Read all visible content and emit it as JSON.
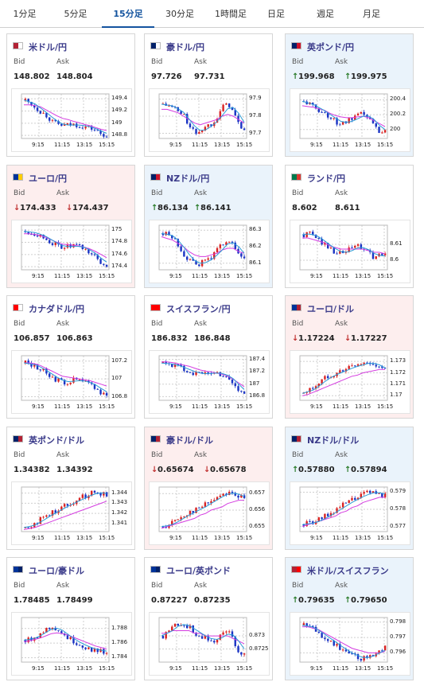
{
  "tabs": [
    {
      "label": "1分足",
      "active": false
    },
    {
      "label": "5分足",
      "active": false
    },
    {
      "label": "15分足",
      "active": true
    },
    {
      "label": "30分足",
      "active": false
    },
    {
      "label": "1時間足",
      "active": false
    },
    {
      "label": "日足",
      "active": false
    },
    {
      "label": "週足",
      "active": false
    },
    {
      "label": "月足",
      "active": false
    }
  ],
  "labels": {
    "bid": "Bid",
    "ask": "Ask"
  },
  "colors": {
    "up_bg": "#eaf3fb",
    "down_bg": "#fdeeee",
    "up_arrow": "#2a7b2a",
    "down_arrow": "#c03030",
    "candle_up": "#d92323",
    "candle_down": "#1b34c4",
    "ma_short": "#2b9bd6",
    "ma_long": "#d43ce0",
    "tab_active": "#14549f"
  },
  "cards": [
    {
      "pair": "米ドル/円",
      "flag": [
        "#b22234",
        "#ffffff"
      ],
      "state": "neutral",
      "bid_arrow": "",
      "bid": "148.802",
      "ask_arrow": "",
      "ask": "148.804",
      "chart": {
        "yticks": [
          "149.4",
          "149.2",
          "149",
          "148.8"
        ],
        "xticks": [
          "9:15",
          "11:15",
          "13:15",
          "15:15"
        ],
        "ymin": 148.75,
        "ymax": 149.48,
        "trend": [
          149.38,
          149.32,
          149.25,
          149.18,
          149.12,
          149.02,
          148.98,
          148.96,
          148.97,
          148.98,
          148.96,
          148.94,
          148.92,
          148.88,
          148.82,
          148.8
        ],
        "ma": [
          149.3,
          149.3,
          149.29,
          149.27,
          149.22,
          149.17,
          149.12,
          149.08,
          149.06,
          149.03,
          149.01,
          148.98,
          148.96,
          148.93,
          148.9,
          148.88
        ]
      }
    },
    {
      "pair": "豪ドル/円",
      "flag": [
        "#012169",
        "#ffffff"
      ],
      "state": "neutral",
      "bid_arrow": "",
      "bid": "97.726",
      "ask_arrow": "",
      "ask": "97.731",
      "chart": {
        "yticks": [
          "97.9",
          "97.8",
          "97.7"
        ],
        "xticks": [
          "9:15",
          "11:15",
          "13:15",
          "15:15"
        ],
        "ymin": 97.67,
        "ymax": 97.93,
        "trend": [
          97.87,
          97.86,
          97.85,
          97.82,
          97.8,
          97.73,
          97.7,
          97.72,
          97.74,
          97.76,
          97.8,
          97.85,
          97.88,
          97.82,
          97.75,
          97.72
        ],
        "ma": [
          97.84,
          97.84,
          97.83,
          97.82,
          97.8,
          97.78,
          97.76,
          97.75,
          97.76,
          97.77,
          97.78,
          97.8,
          97.81,
          97.8,
          97.78,
          97.76
        ]
      }
    },
    {
      "pair": "英ポンド/円",
      "flag": [
        "#012169",
        "#cf142b"
      ],
      "state": "up",
      "bid_arrow": "↑",
      "bid": "199.968",
      "ask_arrow": "↑",
      "ask": "199.975",
      "chart": {
        "yticks": [
          "200.4",
          "200.2",
          "200"
        ],
        "xticks": [
          "9:15",
          "11:15",
          "13:15",
          "15:15"
        ],
        "ymin": 199.88,
        "ymax": 200.48,
        "trend": [
          200.38,
          200.34,
          200.3,
          200.25,
          200.22,
          200.15,
          200.1,
          200.08,
          200.11,
          200.14,
          200.18,
          200.22,
          200.14,
          200.05,
          199.98,
          199.97
        ],
        "ma": [
          200.32,
          200.31,
          200.3,
          200.28,
          200.26,
          200.22,
          200.19,
          200.17,
          200.16,
          200.16,
          200.17,
          200.18,
          200.16,
          200.12,
          200.08,
          200.04
        ]
      }
    },
    {
      "pair": "ユーロ/円",
      "flag": [
        "#003399",
        "#ffcc00"
      ],
      "state": "down",
      "bid_arrow": "↓",
      "bid": "174.433",
      "ask_arrow": "↓",
      "ask": "174.437",
      "chart": {
        "yticks": [
          "175",
          "174.8",
          "174.6",
          "174.4"
        ],
        "xticks": [
          "9:15",
          "11:15",
          "13:15",
          "15:15"
        ],
        "ymin": 174.35,
        "ymax": 175.08,
        "trend": [
          174.98,
          174.96,
          174.94,
          174.9,
          174.85,
          174.78,
          174.74,
          174.72,
          174.73,
          174.75,
          174.72,
          174.68,
          174.62,
          174.55,
          174.45,
          174.43
        ],
        "ma": [
          174.94,
          174.94,
          174.93,
          174.91,
          174.88,
          174.84,
          174.8,
          174.77,
          174.76,
          174.75,
          174.74,
          174.72,
          174.69,
          174.65,
          174.6,
          174.55
        ]
      }
    },
    {
      "pair": "NZドル/円",
      "flag": [
        "#012169",
        "#cc142b"
      ],
      "state": "up",
      "bid_arrow": "↑",
      "bid": "86.134",
      "ask_arrow": "↑",
      "ask": "86.141",
      "chart": {
        "yticks": [
          "86.3",
          "86.2",
          "86.1"
        ],
        "xticks": [
          "9:15",
          "11:15",
          "13:15",
          "15:15"
        ],
        "ymin": 86.06,
        "ymax": 86.33,
        "trend": [
          86.28,
          86.27,
          86.25,
          86.2,
          86.15,
          86.11,
          86.09,
          86.1,
          86.12,
          86.14,
          86.18,
          86.22,
          86.25,
          86.2,
          86.15,
          86.13
        ],
        "ma": [
          86.26,
          86.25,
          86.24,
          86.22,
          86.2,
          86.17,
          86.15,
          86.14,
          86.14,
          86.15,
          86.16,
          86.18,
          86.19,
          86.19,
          86.17,
          86.16
        ]
      }
    },
    {
      "pair": "ランド/円",
      "flag": [
        "#007a4d",
        "#de3831"
      ],
      "state": "neutral",
      "bid_arrow": "",
      "bid": "8.602",
      "ask_arrow": "",
      "ask": "8.611",
      "chart": {
        "yticks": [
          "8.61",
          "8.6"
        ],
        "xticks": [
          "9:15",
          "11:15",
          "13:15",
          "15:15"
        ],
        "ymin": 8.594,
        "ymax": 8.622,
        "trend": [
          8.616,
          8.617,
          8.615,
          8.612,
          8.61,
          8.607,
          8.605,
          8.604,
          8.606,
          8.608,
          8.609,
          8.607,
          8.604,
          8.602,
          8.603,
          8.603
        ],
        "ma": [
          8.614,
          8.614,
          8.613,
          8.612,
          8.611,
          8.609,
          8.608,
          8.607,
          8.607,
          8.607,
          8.607,
          8.607,
          8.606,
          8.605,
          8.605,
          8.604
        ]
      }
    },
    {
      "pair": "カナダドル/円",
      "flag": [
        "#ff0000",
        "#ffffff"
      ],
      "state": "neutral",
      "bid_arrow": "",
      "bid": "106.857",
      "ask_arrow": "",
      "ask": "106.863",
      "chart": {
        "yticks": [
          "107.2",
          "107",
          "106.8"
        ],
        "xticks": [
          "9:15",
          "11:15",
          "13:15",
          "15:15"
        ],
        "ymin": 106.76,
        "ymax": 107.26,
        "trend": [
          107.18,
          107.16,
          107.14,
          107.1,
          107.06,
          107.02,
          106.98,
          106.96,
          106.97,
          106.99,
          106.98,
          106.96,
          106.94,
          106.9,
          106.84,
          106.83
        ],
        "ma": [
          107.18,
          107.18,
          107.17,
          107.15,
          107.12,
          107.09,
          107.06,
          107.03,
          107.02,
          107.01,
          107.0,
          106.99,
          106.98,
          106.96,
          106.94,
          106.92
        ]
      }
    },
    {
      "pair": "スイスフラン/円",
      "flag": [
        "#ff0000",
        "#ff0000"
      ],
      "state": "neutral",
      "bid_arrow": "",
      "bid": "186.832",
      "ask_arrow": "",
      "ask": "186.848",
      "chart": {
        "yticks": [
          "187.4",
          "187.2",
          "187",
          "186.8"
        ],
        "xticks": [
          "9:15",
          "11:15",
          "13:15",
          "15:15"
        ],
        "ymin": 186.74,
        "ymax": 187.46,
        "trend": [
          187.34,
          187.33,
          187.31,
          187.28,
          187.24,
          187.2,
          187.18,
          187.16,
          187.17,
          187.19,
          187.18,
          187.15,
          187.1,
          187.02,
          186.88,
          186.84
        ],
        "ma": [
          187.36,
          187.36,
          187.35,
          187.33,
          187.31,
          187.29,
          187.26,
          187.23,
          187.21,
          187.2,
          187.18,
          187.16,
          187.13,
          187.08,
          187.02,
          186.96
        ]
      }
    },
    {
      "pair": "ユーロ/ドル",
      "flag": [
        "#003399",
        "#b22234"
      ],
      "state": "down",
      "bid_arrow": "↓",
      "bid": "1.17224",
      "ask_arrow": "↓",
      "ask": "1.17227",
      "chart": {
        "yticks": [
          "1.173",
          "1.172",
          "1.171",
          "1.17"
        ],
        "xticks": [
          "9:15",
          "11:15",
          "13:15",
          "15:15"
        ],
        "ymin": 1.1696,
        "ymax": 1.1735,
        "trend": [
          1.1702,
          1.1705,
          1.1708,
          1.1712,
          1.1716,
          1.1718,
          1.172,
          1.1722,
          1.1724,
          1.1726,
          1.1727,
          1.1728,
          1.173,
          1.1727,
          1.1724,
          1.1722
        ],
        "ma": [
          1.17,
          1.1701,
          1.1703,
          1.1705,
          1.1707,
          1.1709,
          1.1711,
          1.1713,
          1.1715,
          1.1717,
          1.1718,
          1.172,
          1.1721,
          1.1722,
          1.1723,
          1.1723
        ]
      }
    },
    {
      "pair": "英ポンド/ドル",
      "flag": [
        "#012169",
        "#b22234"
      ],
      "state": "neutral",
      "bid_arrow": "",
      "bid": "1.34382",
      "ask_arrow": "",
      "ask": "1.34392",
      "chart": {
        "yticks": [
          "1.344",
          "1.343",
          "1.342",
          "1.341"
        ],
        "xticks": [
          "9:15",
          "11:15",
          "13:15",
          "15:15"
        ],
        "ymin": 1.3402,
        "ymax": 1.3446,
        "trend": [
          1.3406,
          1.3408,
          1.3411,
          1.3415,
          1.3418,
          1.3421,
          1.3424,
          1.3427,
          1.343,
          1.3432,
          1.3435,
          1.3437,
          1.344,
          1.3441,
          1.344,
          1.3438
        ],
        "ma": [
          1.3404,
          1.3405,
          1.3406,
          1.3408,
          1.341,
          1.3412,
          1.3414,
          1.3416,
          1.3418,
          1.342,
          1.3422,
          1.3424,
          1.3426,
          1.3428,
          1.343,
          1.3432
        ]
      }
    },
    {
      "pair": "豪ドル/ドル",
      "flag": [
        "#012169",
        "#b22234"
      ],
      "state": "down",
      "bid_arrow": "↓",
      "bid": "0.65674",
      "ask_arrow": "↓",
      "ask": "0.65678",
      "chart": {
        "yticks": [
          "0.657",
          "0.656",
          "0.655"
        ],
        "xticks": [
          "9:15",
          "11:15",
          "13:15",
          "15:15"
        ],
        "ymin": 0.6547,
        "ymax": 0.6574,
        "trend": [
          0.655,
          0.6551,
          0.6553,
          0.6555,
          0.6557,
          0.6559,
          0.656,
          0.6562,
          0.6564,
          0.6566,
          0.6568,
          0.657,
          0.6571,
          0.657,
          0.6568,
          0.6567
        ],
        "ma": [
          0.6549,
          0.655,
          0.6551,
          0.6552,
          0.6553,
          0.6554,
          0.6555,
          0.6557,
          0.6558,
          0.656,
          0.6561,
          0.6562,
          0.6564,
          0.6565,
          0.6566,
          0.6566
        ]
      }
    },
    {
      "pair": "NZドル/ドル",
      "flag": [
        "#012169",
        "#b22234"
      ],
      "state": "up",
      "bid_arrow": "↑",
      "bid": "0.57880",
      "ask_arrow": "↑",
      "ask": "0.57894",
      "chart": {
        "yticks": [
          "0.579",
          "0.578",
          "0.577"
        ],
        "xticks": [
          "9:15",
          "11:15",
          "13:15",
          "15:15"
        ],
        "ymin": 0.5767,
        "ymax": 0.5793,
        "trend": [
          0.5771,
          0.5772,
          0.5773,
          0.5774,
          0.5776,
          0.5778,
          0.578,
          0.5782,
          0.5784,
          0.5786,
          0.5787,
          0.5789,
          0.579,
          0.579,
          0.5789,
          0.5788
        ],
        "ma": [
          0.577,
          0.5771,
          0.5772,
          0.5773,
          0.5774,
          0.5775,
          0.5776,
          0.5778,
          0.5779,
          0.5781,
          0.5782,
          0.5784,
          0.5785,
          0.5786,
          0.5787,
          0.5787
        ]
      }
    },
    {
      "pair": "ユーロ/豪ドル",
      "flag": [
        "#003399",
        "#012169"
      ],
      "state": "neutral",
      "bid_arrow": "",
      "bid": "1.78485",
      "ask_arrow": "",
      "ask": "1.78499",
      "chart": {
        "yticks": [
          "1.788",
          "1.786",
          "1.784"
        ],
        "xticks": [
          "9:15",
          "11:15",
          "13:15",
          "15:15"
        ],
        "ymin": 1.7834,
        "ymax": 1.7895,
        "trend": [
          1.7864,
          1.7866,
          1.787,
          1.7874,
          1.788,
          1.7883,
          1.7878,
          1.7872,
          1.7866,
          1.7862,
          1.7858,
          1.7854,
          1.7852,
          1.785,
          1.7849,
          1.7848
        ],
        "ma": [
          1.7862,
          1.7863,
          1.7865,
          1.7867,
          1.787,
          1.7873,
          1.7874,
          1.7873,
          1.7871,
          1.7868,
          1.7865,
          1.7862,
          1.7859,
          1.7856,
          1.7854,
          1.7852
        ]
      }
    },
    {
      "pair": "ユーロ/英ポンド",
      "flag": [
        "#003399",
        "#012169"
      ],
      "state": "neutral",
      "bid_arrow": "",
      "bid": "0.87227",
      "ask_arrow": "",
      "ask": "0.87235",
      "chart": {
        "yticks": [
          "0.873",
          "0.8725"
        ],
        "xticks": [
          "9:15",
          "11:15",
          "13:15",
          "15:15"
        ],
        "ymin": 0.872,
        "ymax": 0.8737,
        "trend": [
          0.873,
          0.8732,
          0.8734,
          0.8735,
          0.8734,
          0.8733,
          0.8731,
          0.873,
          0.8729,
          0.8728,
          0.8729,
          0.8731,
          0.8732,
          0.8728,
          0.8724,
          0.8723
        ],
        "ma": [
          0.8731,
          0.8731,
          0.8732,
          0.8732,
          0.8732,
          0.8732,
          0.8731,
          0.8731,
          0.873,
          0.873,
          0.873,
          0.873,
          0.873,
          0.8729,
          0.8728,
          0.8727
        ]
      }
    },
    {
      "pair": "米ドル/スイスフラン",
      "flag": [
        "#b22234",
        "#ff0000"
      ],
      "state": "up",
      "bid_arrow": "↑",
      "bid": "0.79635",
      "ask_arrow": "↑",
      "ask": "0.79650",
      "chart": {
        "yticks": [
          "0.798",
          "0.797",
          "0.796"
        ],
        "xticks": [
          "9:15",
          "11:15",
          "13:15",
          "15:15"
        ],
        "ymin": 0.7954,
        "ymax": 0.7983,
        "trend": [
          0.7978,
          0.7977,
          0.7975,
          0.7972,
          0.797,
          0.7967,
          0.7965,
          0.7962,
          0.796,
          0.7958,
          0.7957,
          0.7956,
          0.7958,
          0.796,
          0.7962,
          0.7963
        ],
        "ma": [
          0.7977,
          0.7977,
          0.7976,
          0.7975,
          0.7973,
          0.7971,
          0.7969,
          0.7967,
          0.7965,
          0.7963,
          0.7962,
          0.7961,
          0.796,
          0.796,
          0.796,
          0.7961
        ]
      }
    }
  ]
}
